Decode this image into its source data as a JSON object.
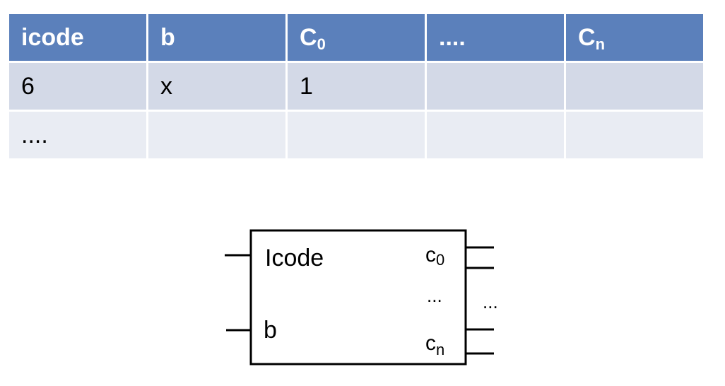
{
  "table": {
    "headers": [
      {
        "main": "icode",
        "sub": ""
      },
      {
        "main": "b",
        "sub": ""
      },
      {
        "main": "C",
        "sub": "0"
      },
      {
        "main": "....",
        "sub": ""
      },
      {
        "main": "C",
        "sub": "n"
      }
    ],
    "rows": [
      [
        "6",
        "x",
        "1",
        "",
        ""
      ],
      [
        "....",
        "",
        "",
        "",
        ""
      ]
    ]
  },
  "block": {
    "input_icode": "Icode",
    "input_b": "b",
    "output_c0_main": "c",
    "output_c0_sub": "0",
    "inner_ellipsis": "...",
    "output_cn_main": "c",
    "output_cn_sub": "n",
    "outer_ellipsis": "..."
  }
}
